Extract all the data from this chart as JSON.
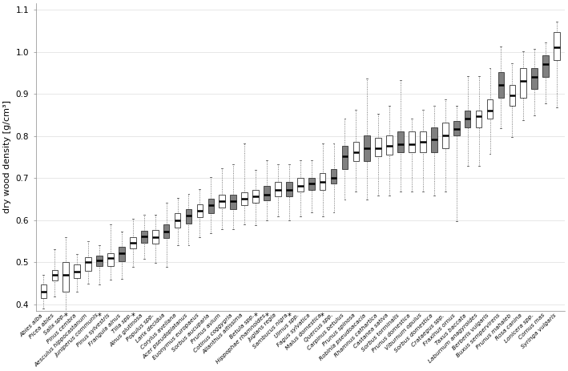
{
  "ylabel": "dry wood density [g/cm³]",
  "ylim": [
    0.385,
    1.115
  ],
  "yticks": [
    0.4,
    0.5,
    0.6,
    0.7,
    0.8,
    0.9,
    1.0,
    1.1
  ],
  "background_color": "#ffffff",
  "grid_color": "#dddddd",
  "species": [
    "Abies alba",
    "Picea abies",
    "Salix spp.",
    "Pinus cembra",
    "Aesculus hippocastanum",
    "Juniperus communis",
    "Pinus sylvestris",
    "Frangula alnus",
    "Tilia spp.",
    "Alnus glutinosa",
    "Populus spp.",
    "Larix decidua",
    "Corylus avellana",
    "Acer pseudoplatanus",
    "Euonymus europaeus",
    "Sorbus aucuparia",
    "Prunus avium",
    "Cotinus coggygria",
    "Ailanthus altissima",
    "Betula spp.",
    "Hippophae rhamnoides",
    "Juglans regia",
    "Sambucus nigra",
    "Ulmus spp.",
    "Fagus sylvatica",
    "Malus domestica",
    "Quercus spp.",
    "Carpinus betulus",
    "Prunus spinosa",
    "Robinia pseudoacacia",
    "Rhamnus cathartica",
    "Castanea sativa",
    "Sorbus torminalis",
    "Prunus domestica",
    "Viburnum opulus",
    "Sorbus domestica",
    "Crataegus spp.",
    "Fraxinus ornus",
    "Taxus baccata",
    "Laburnum anagyroides",
    "Berberis vulgaris",
    "Buxus sempervirens",
    "Prunus mahaleb",
    "Rosa canina",
    "Lonicera spp.",
    "Cornus mas",
    "Syringa vulgaris"
  ],
  "star_indices": [
    2,
    5,
    8,
    19,
    20,
    22,
    25
  ],
  "boxes": [
    {
      "q1": 0.415,
      "med": 0.43,
      "q3": 0.447,
      "whislo": 0.39,
      "whishi": 0.47,
      "color": "white"
    },
    {
      "q1": 0.457,
      "med": 0.47,
      "q3": 0.482,
      "whislo": 0.418,
      "whishi": 0.53,
      "color": "white"
    },
    {
      "q1": 0.43,
      "med": 0.47,
      "q3": 0.5,
      "whislo": 0.378,
      "whishi": 0.56,
      "color": "white"
    },
    {
      "q1": 0.462,
      "med": 0.478,
      "q3": 0.494,
      "whislo": 0.43,
      "whishi": 0.52,
      "color": "white"
    },
    {
      "q1": 0.48,
      "med": 0.5,
      "q3": 0.512,
      "whislo": 0.448,
      "whishi": 0.55,
      "color": "white"
    },
    {
      "q1": 0.49,
      "med": 0.505,
      "q3": 0.516,
      "whislo": 0.447,
      "whishi": 0.54,
      "color": "gray"
    },
    {
      "q1": 0.49,
      "med": 0.51,
      "q3": 0.522,
      "whislo": 0.458,
      "whishi": 0.59,
      "color": "white"
    },
    {
      "q1": 0.502,
      "med": 0.522,
      "q3": 0.536,
      "whislo": 0.46,
      "whishi": 0.573,
      "color": "gray"
    },
    {
      "q1": 0.533,
      "med": 0.546,
      "q3": 0.56,
      "whislo": 0.488,
      "whishi": 0.604,
      "color": "white"
    },
    {
      "q1": 0.546,
      "med": 0.561,
      "q3": 0.575,
      "whislo": 0.508,
      "whishi": 0.612,
      "color": "gray"
    },
    {
      "q1": 0.545,
      "med": 0.56,
      "q3": 0.576,
      "whislo": 0.498,
      "whishi": 0.612,
      "color": "white"
    },
    {
      "q1": 0.557,
      "med": 0.572,
      "q3": 0.59,
      "whislo": 0.488,
      "whishi": 0.642,
      "color": "gray"
    },
    {
      "q1": 0.582,
      "med": 0.6,
      "q3": 0.616,
      "whislo": 0.54,
      "whishi": 0.652,
      "color": "white"
    },
    {
      "q1": 0.592,
      "med": 0.61,
      "q3": 0.626,
      "whislo": 0.54,
      "whishi": 0.662,
      "color": "gray"
    },
    {
      "q1": 0.607,
      "med": 0.622,
      "q3": 0.637,
      "whislo": 0.559,
      "whishi": 0.673,
      "color": "white"
    },
    {
      "q1": 0.617,
      "med": 0.636,
      "q3": 0.651,
      "whislo": 0.569,
      "whishi": 0.703,
      "color": "gray"
    },
    {
      "q1": 0.63,
      "med": 0.645,
      "q3": 0.66,
      "whislo": 0.578,
      "whishi": 0.723,
      "color": "white"
    },
    {
      "q1": 0.626,
      "med": 0.645,
      "q3": 0.661,
      "whislo": 0.578,
      "whishi": 0.732,
      "color": "gray"
    },
    {
      "q1": 0.636,
      "med": 0.651,
      "q3": 0.666,
      "whislo": 0.589,
      "whishi": 0.783,
      "color": "white"
    },
    {
      "q1": 0.641,
      "med": 0.656,
      "q3": 0.671,
      "whislo": 0.588,
      "whishi": 0.72,
      "color": "white"
    },
    {
      "q1": 0.646,
      "med": 0.661,
      "q3": 0.681,
      "whislo": 0.599,
      "whishi": 0.743,
      "color": "gray"
    },
    {
      "q1": 0.657,
      "med": 0.671,
      "q3": 0.691,
      "whislo": 0.609,
      "whishi": 0.733,
      "color": "white"
    },
    {
      "q1": 0.657,
      "med": 0.671,
      "q3": 0.691,
      "whislo": 0.599,
      "whishi": 0.733,
      "color": "gray"
    },
    {
      "q1": 0.667,
      "med": 0.681,
      "q3": 0.701,
      "whislo": 0.609,
      "whishi": 0.743,
      "color": "white"
    },
    {
      "q1": 0.671,
      "med": 0.686,
      "q3": 0.701,
      "whislo": 0.619,
      "whishi": 0.743,
      "color": "gray"
    },
    {
      "q1": 0.671,
      "med": 0.691,
      "q3": 0.711,
      "whislo": 0.609,
      "whishi": 0.783,
      "color": "white"
    },
    {
      "q1": 0.686,
      "med": 0.701,
      "q3": 0.721,
      "whislo": 0.619,
      "whishi": 0.783,
      "color": "gray"
    },
    {
      "q1": 0.722,
      "med": 0.752,
      "q3": 0.776,
      "whislo": 0.648,
      "whishi": 0.842,
      "color": "gray"
    },
    {
      "q1": 0.741,
      "med": 0.761,
      "q3": 0.786,
      "whislo": 0.668,
      "whishi": 0.862,
      "color": "white"
    },
    {
      "q1": 0.741,
      "med": 0.771,
      "q3": 0.801,
      "whislo": 0.648,
      "whishi": 0.937,
      "color": "gray"
    },
    {
      "q1": 0.751,
      "med": 0.771,
      "q3": 0.796,
      "whislo": 0.658,
      "whishi": 0.852,
      "color": "white"
    },
    {
      "q1": 0.756,
      "med": 0.776,
      "q3": 0.801,
      "whislo": 0.658,
      "whishi": 0.872,
      "color": "white"
    },
    {
      "q1": 0.761,
      "med": 0.781,
      "q3": 0.811,
      "whislo": 0.668,
      "whishi": 0.932,
      "color": "gray"
    },
    {
      "q1": 0.761,
      "med": 0.781,
      "q3": 0.811,
      "whislo": 0.668,
      "whishi": 0.842,
      "color": "white"
    },
    {
      "q1": 0.761,
      "med": 0.786,
      "q3": 0.811,
      "whislo": 0.668,
      "whishi": 0.862,
      "color": "white"
    },
    {
      "q1": 0.761,
      "med": 0.791,
      "q3": 0.821,
      "whislo": 0.658,
      "whishi": 0.872,
      "color": "gray"
    },
    {
      "q1": 0.771,
      "med": 0.801,
      "q3": 0.831,
      "whislo": 0.668,
      "whishi": 0.887,
      "color": "white"
    },
    {
      "q1": 0.801,
      "med": 0.816,
      "q3": 0.836,
      "whislo": 0.598,
      "whishi": 0.872,
      "color": "gray"
    },
    {
      "q1": 0.821,
      "med": 0.841,
      "q3": 0.861,
      "whislo": 0.728,
      "whishi": 0.942,
      "color": "gray"
    },
    {
      "q1": 0.821,
      "med": 0.846,
      "q3": 0.861,
      "whislo": 0.728,
      "whishi": 0.942,
      "color": "white"
    },
    {
      "q1": 0.841,
      "med": 0.861,
      "q3": 0.886,
      "whislo": 0.758,
      "whishi": 0.962,
      "color": "white"
    },
    {
      "q1": 0.891,
      "med": 0.921,
      "q3": 0.951,
      "whislo": 0.818,
      "whishi": 1.012,
      "color": "gray"
    },
    {
      "q1": 0.871,
      "med": 0.896,
      "q3": 0.921,
      "whislo": 0.798,
      "whishi": 0.972,
      "color": "white"
    },
    {
      "q1": 0.891,
      "med": 0.931,
      "q3": 0.961,
      "whislo": 0.838,
      "whishi": 1.002,
      "color": "white"
    },
    {
      "q1": 0.911,
      "med": 0.941,
      "q3": 0.961,
      "whislo": 0.848,
      "whishi": 1.007,
      "color": "gray"
    },
    {
      "q1": 0.941,
      "med": 0.971,
      "q3": 0.991,
      "whislo": 0.878,
      "whishi": 1.022,
      "color": "gray"
    },
    {
      "q1": 0.981,
      "med": 1.011,
      "q3": 1.046,
      "whislo": 0.868,
      "whishi": 1.072,
      "color": "white"
    }
  ]
}
